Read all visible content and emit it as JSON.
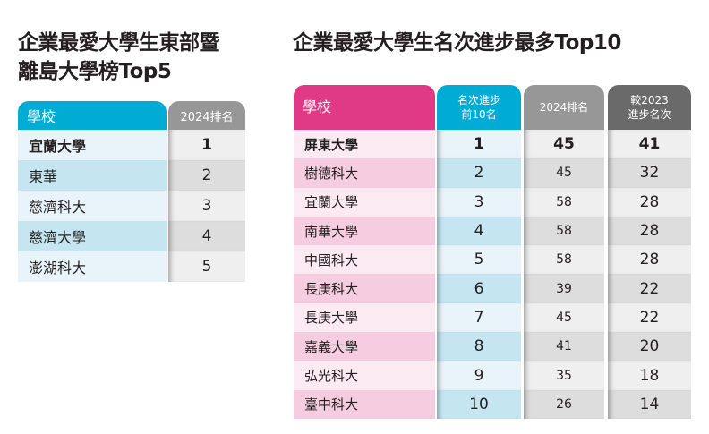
{
  "left": {
    "title_line1": "企業最愛大學生東部暨",
    "title_line2": "離島大學榜Top5",
    "headers": [
      "學校",
      "2024排名"
    ],
    "rows": [
      {
        "school": "宜蘭大學",
        "rank": "1"
      },
      {
        "school": "東華",
        "rank": "2"
      },
      {
        "school": "慈濟科大",
        "rank": "3"
      },
      {
        "school": "慈濟大學",
        "rank": "4"
      },
      {
        "school": "澎湖科大",
        "rank": "5"
      }
    ]
  },
  "right": {
    "title": "企業最愛大學生名次進步最多Top10",
    "headers": [
      "學校",
      "名次進步\n前10名",
      "2024排名",
      "較2023\n進步名次"
    ],
    "header_lines": {
      "h1a": "名次進步",
      "h1b": "前10名",
      "h3a": "較2023",
      "h3b": "進步名次"
    },
    "rows": [
      {
        "school": "屏東大學",
        "progress_rank": "1",
        "rank_2024": "45",
        "improvement": "41"
      },
      {
        "school": "樹德科大",
        "progress_rank": "2",
        "rank_2024": "45",
        "improvement": "32"
      },
      {
        "school": "宜蘭大學",
        "progress_rank": "3",
        "rank_2024": "58",
        "improvement": "28"
      },
      {
        "school": "南華大學",
        "progress_rank": "4",
        "rank_2024": "58",
        "improvement": "28"
      },
      {
        "school": "中國科大",
        "progress_rank": "5",
        "rank_2024": "58",
        "improvement": "28"
      },
      {
        "school": "長庚科大",
        "progress_rank": "6",
        "rank_2024": "39",
        "improvement": "22"
      },
      {
        "school": "長庚大學",
        "progress_rank": "7",
        "rank_2024": "45",
        "improvement": "22"
      },
      {
        "school": "嘉義大學",
        "progress_rank": "8",
        "rank_2024": "41",
        "improvement": "20"
      },
      {
        "school": "弘光科大",
        "progress_rank": "9",
        "rank_2024": "35",
        "improvement": "18"
      },
      {
        "school": "臺中科大",
        "progress_rank": "10",
        "rank_2024": "26",
        "improvement": "14"
      }
    ]
  },
  "colors": {
    "blue": "#00acd4",
    "pink": "#e03a87",
    "gray": "#979797",
    "dark_gray": "#6b6a6a"
  }
}
